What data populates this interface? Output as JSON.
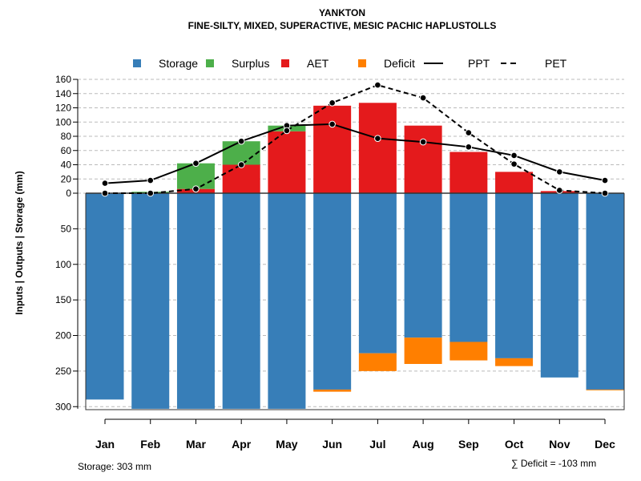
{
  "chart_data": {
    "type": "bar",
    "title": "YANKTON",
    "subtitle": "FINE-SILTY, MIXED, SUPERACTIVE, MESIC PACHIC HAPLUSTOLLS",
    "ylabel": "Inputs | Outputs | Storage     (mm)",
    "categories": [
      "Jan",
      "Feb",
      "Mar",
      "Apr",
      "May",
      "Jun",
      "Jul",
      "Aug",
      "Sep",
      "Oct",
      "Nov",
      "Dec"
    ],
    "upper_ticks": [
      0,
      20,
      40,
      60,
      80,
      100,
      120,
      140,
      160
    ],
    "lower_ticks": [
      50,
      100,
      150,
      200,
      250,
      300
    ],
    "ylim_upper": [
      0,
      160
    ],
    "ylim_lower": [
      0,
      303
    ],
    "legend": [
      "Storage",
      "Surplus",
      "AET",
      "Deficit",
      "PPT",
      "PET"
    ],
    "legend_placement": "top",
    "colors": {
      "Storage": "#377EB8",
      "Surplus": "#4DAF4A",
      "AET": "#E41A1C",
      "Deficit": "#FF7F00"
    },
    "series": [
      {
        "name": "AET",
        "values": [
          0,
          0,
          6,
          40,
          87,
          123,
          127,
          95,
          58,
          30,
          3,
          0
        ]
      },
      {
        "name": "Surplus",
        "values": [
          0,
          2,
          36,
          33,
          8,
          0,
          0,
          0,
          0,
          0,
          0,
          0
        ]
      },
      {
        "name": "Storage",
        "values": [
          290,
          303,
          303,
          303,
          303,
          276,
          225,
          203,
          209,
          232,
          259,
          276
        ]
      },
      {
        "name": "Deficit",
        "values": [
          0,
          0,
          0,
          0,
          0,
          3,
          25,
          37,
          26,
          11,
          0,
          1
        ]
      },
      {
        "name": "PPT",
        "values": [
          14,
          18,
          42,
          73,
          95,
          97,
          77,
          72,
          65,
          53,
          30,
          18
        ]
      },
      {
        "name": "PET",
        "values": [
          0,
          0,
          6,
          40,
          88,
          127,
          152,
          134,
          85,
          41,
          4,
          0
        ]
      }
    ],
    "annotations": {
      "storage": "Storage: 303 mm",
      "deficit": "∑ Deficit = -103 mm"
    }
  }
}
